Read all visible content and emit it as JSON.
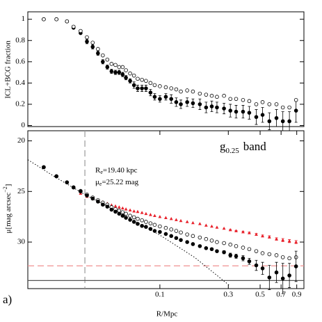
{
  "chart_data": [
    {
      "type": "scatter",
      "ylabel": "ICL+BCG fraction",
      "xscale": "log",
      "xlim": [
        0.012,
        1.01
      ],
      "ylim": [
        -0.01,
        1.07
      ],
      "yticks": [
        0,
        0.2,
        0.4,
        0.6,
        0.8,
        1
      ],
      "x": [
        0.0155,
        0.019,
        0.0225,
        0.025,
        0.028,
        0.031,
        0.034,
        0.037,
        0.04,
        0.043,
        0.046,
        0.049,
        0.052,
        0.055,
        0.058,
        0.062,
        0.066,
        0.07,
        0.075,
        0.08,
        0.086,
        0.092,
        0.1,
        0.11,
        0.12,
        0.13,
        0.14,
        0.155,
        0.17,
        0.19,
        0.21,
        0.23,
        0.25,
        0.28,
        0.31,
        0.34,
        0.38,
        0.42,
        0.47,
        0.52,
        0.58,
        0.65,
        0.72,
        0.8,
        0.89
      ],
      "series": [
        {
          "marker": "filled",
          "color": "#000000",
          "values": [
            1.0,
            1.0,
            0.98,
            0.92,
            0.87,
            0.79,
            0.74,
            0.68,
            0.6,
            0.55,
            0.51,
            0.5,
            0.5,
            0.48,
            0.45,
            0.42,
            0.38,
            0.35,
            0.35,
            0.35,
            0.31,
            0.27,
            0.25,
            0.27,
            0.25,
            0.22,
            0.2,
            0.22,
            0.21,
            0.2,
            0.17,
            0.18,
            0.17,
            0.16,
            0.14,
            0.13,
            0.13,
            0.12,
            0.08,
            0.1,
            0.04,
            0.07,
            0.04,
            0.04,
            0.14
          ],
          "errors": [
            null,
            null,
            0.01,
            0.01,
            0.01,
            0.02,
            0.02,
            0.02,
            0.02,
            0.02,
            0.02,
            0.02,
            0.02,
            0.02,
            0.02,
            0.02,
            0.03,
            0.03,
            0.03,
            0.03,
            0.03,
            0.03,
            0.03,
            0.03,
            0.04,
            0.04,
            0.04,
            0.04,
            0.04,
            0.05,
            0.05,
            0.05,
            0.05,
            0.05,
            0.06,
            0.06,
            0.06,
            0.06,
            0.07,
            0.07,
            0.08,
            0.08,
            0.09,
            0.09,
            0.11
          ]
        },
        {
          "marker": "open",
          "color": "#000000",
          "values": [
            1.0,
            1.0,
            0.98,
            0.93,
            0.89,
            0.83,
            0.78,
            0.72,
            0.66,
            0.62,
            0.58,
            0.57,
            0.55,
            0.55,
            0.52,
            0.49,
            0.47,
            0.44,
            0.43,
            0.42,
            0.4,
            0.38,
            0.37,
            0.36,
            0.35,
            0.34,
            0.32,
            0.33,
            0.32,
            0.3,
            0.29,
            0.28,
            0.27,
            0.28,
            0.25,
            0.25,
            0.24,
            0.23,
            0.2,
            0.22,
            0.2,
            0.2,
            0.17,
            0.17,
            0.24
          ]
        }
      ]
    },
    {
      "type": "scatter",
      "xlabel": "R/Mpc",
      "xscale": "log",
      "ylabel": {
        "main": "μ[mag arcsec",
        "sup": "−2",
        "end": "]"
      },
      "band_label": {
        "main": "g",
        "sub": "0.25",
        "suffix": "band"
      },
      "fit_labels": [
        {
          "main": "R",
          "sub": "e",
          "rest": "=19.40 kpc"
        },
        {
          "main": "μ",
          "sub": "e",
          "rest": "=25.22 mag"
        }
      ],
      "panel_label": "a)",
      "xlim": [
        0.012,
        1.01
      ],
      "ylim": [
        34.6,
        19
      ],
      "yticks": [
        20,
        25,
        30
      ],
      "xticks": [
        0.1,
        0.3,
        0.5,
        0.7,
        0.9
      ],
      "reference_lines": [
        {
          "axis": "x",
          "value": 0.03,
          "color": "#9a9a9a",
          "style": "dashed"
        },
        {
          "axis": "y",
          "value": 32.35,
          "color": "#f09090",
          "style": "dashed"
        },
        {
          "axis": "y",
          "value": 33.8,
          "color": "#555555",
          "style": "solid"
        }
      ],
      "fit": {
        "color": "#000000",
        "style": "dotted",
        "x": [
          0.012,
          0.0187,
          0.03,
          0.0512,
          0.1,
          0.175,
          0.305
        ],
        "values": [
          21.86,
          23.59,
          25.31,
          27.03,
          29.31,
          31.52,
          34.28
        ]
      },
      "x": [
        0.0155,
        0.019,
        0.0225,
        0.025,
        0.028,
        0.031,
        0.034,
        0.037,
        0.04,
        0.043,
        0.046,
        0.049,
        0.052,
        0.055,
        0.058,
        0.062,
        0.066,
        0.07,
        0.075,
        0.08,
        0.086,
        0.092,
        0.1,
        0.11,
        0.12,
        0.13,
        0.14,
        0.155,
        0.17,
        0.19,
        0.21,
        0.23,
        0.25,
        0.28,
        0.31,
        0.34,
        0.38,
        0.42,
        0.47,
        0.52,
        0.58,
        0.65,
        0.72,
        0.8,
        0.89
      ],
      "series": [
        {
          "marker": "triangle",
          "color": "#e8202a",
          "values": [
            null,
            null,
            null,
            null,
            25.2,
            25.5,
            25.7,
            25.9,
            26.05,
            26.2,
            26.35,
            26.45,
            26.55,
            26.65,
            26.75,
            26.85,
            26.95,
            27.0,
            27.1,
            27.2,
            27.3,
            27.4,
            27.5,
            27.6,
            27.7,
            27.8,
            27.9,
            28.0,
            28.1,
            28.2,
            28.35,
            28.45,
            28.55,
            28.65,
            28.8,
            28.9,
            29.0,
            29.1,
            29.25,
            29.4,
            29.5,
            29.7,
            29.8,
            29.9,
            30.0
          ],
          "errors": [
            null,
            null,
            null,
            null,
            null,
            null,
            null,
            null,
            null,
            null,
            null,
            null,
            null,
            null,
            null,
            null,
            null,
            null,
            null,
            null,
            null,
            null,
            null,
            null,
            null,
            null,
            null,
            null,
            null,
            null,
            null,
            null,
            null,
            null,
            0.05,
            0.05,
            0.08,
            0.08,
            0.1,
            0.1,
            0.12,
            0.12,
            0.15,
            0.15,
            0.15
          ]
        },
        {
          "marker": "open",
          "color": "#000000",
          "values": [
            22.6,
            23.5,
            24.1,
            24.6,
            24.95,
            25.3,
            25.6,
            25.85,
            26.1,
            26.3,
            26.55,
            26.75,
            26.9,
            27.05,
            27.2,
            27.4,
            27.55,
            27.7,
            27.85,
            28.0,
            28.15,
            28.3,
            28.45,
            28.6,
            28.75,
            28.9,
            29.05,
            29.25,
            29.4,
            29.55,
            29.7,
            29.85,
            30.0,
            30.1,
            30.25,
            30.4,
            30.55,
            30.7,
            30.9,
            31.1,
            31.2,
            31.3,
            31.5,
            31.6,
            31.5
          ]
        },
        {
          "marker": "filled",
          "color": "#000000",
          "values": [
            22.6,
            23.5,
            24.1,
            24.6,
            25.0,
            25.4,
            25.7,
            26.0,
            26.3,
            26.5,
            26.8,
            27.0,
            27.2,
            27.4,
            27.6,
            27.8,
            28.0,
            28.2,
            28.4,
            28.5,
            28.7,
            28.9,
            29.0,
            29.2,
            29.4,
            29.6,
            29.8,
            30.0,
            30.2,
            30.4,
            30.6,
            30.7,
            30.9,
            31.0,
            31.3,
            31.4,
            31.6,
            31.9,
            32.3,
            32.6,
            33.5,
            33.0,
            33.6,
            33.3,
            32.4
          ],
          "errors": [
            null,
            null,
            null,
            null,
            null,
            null,
            null,
            null,
            null,
            null,
            null,
            null,
            null,
            null,
            null,
            null,
            null,
            null,
            null,
            null,
            null,
            null,
            null,
            null,
            0.05,
            0.05,
            0.05,
            0.05,
            0.08,
            0.08,
            0.1,
            0.1,
            0.12,
            0.15,
            0.2,
            0.2,
            0.25,
            0.3,
            0.5,
            0.6,
            1.2,
            1.0,
            1.5,
            1.2,
            1.5
          ]
        }
      ]
    }
  ]
}
